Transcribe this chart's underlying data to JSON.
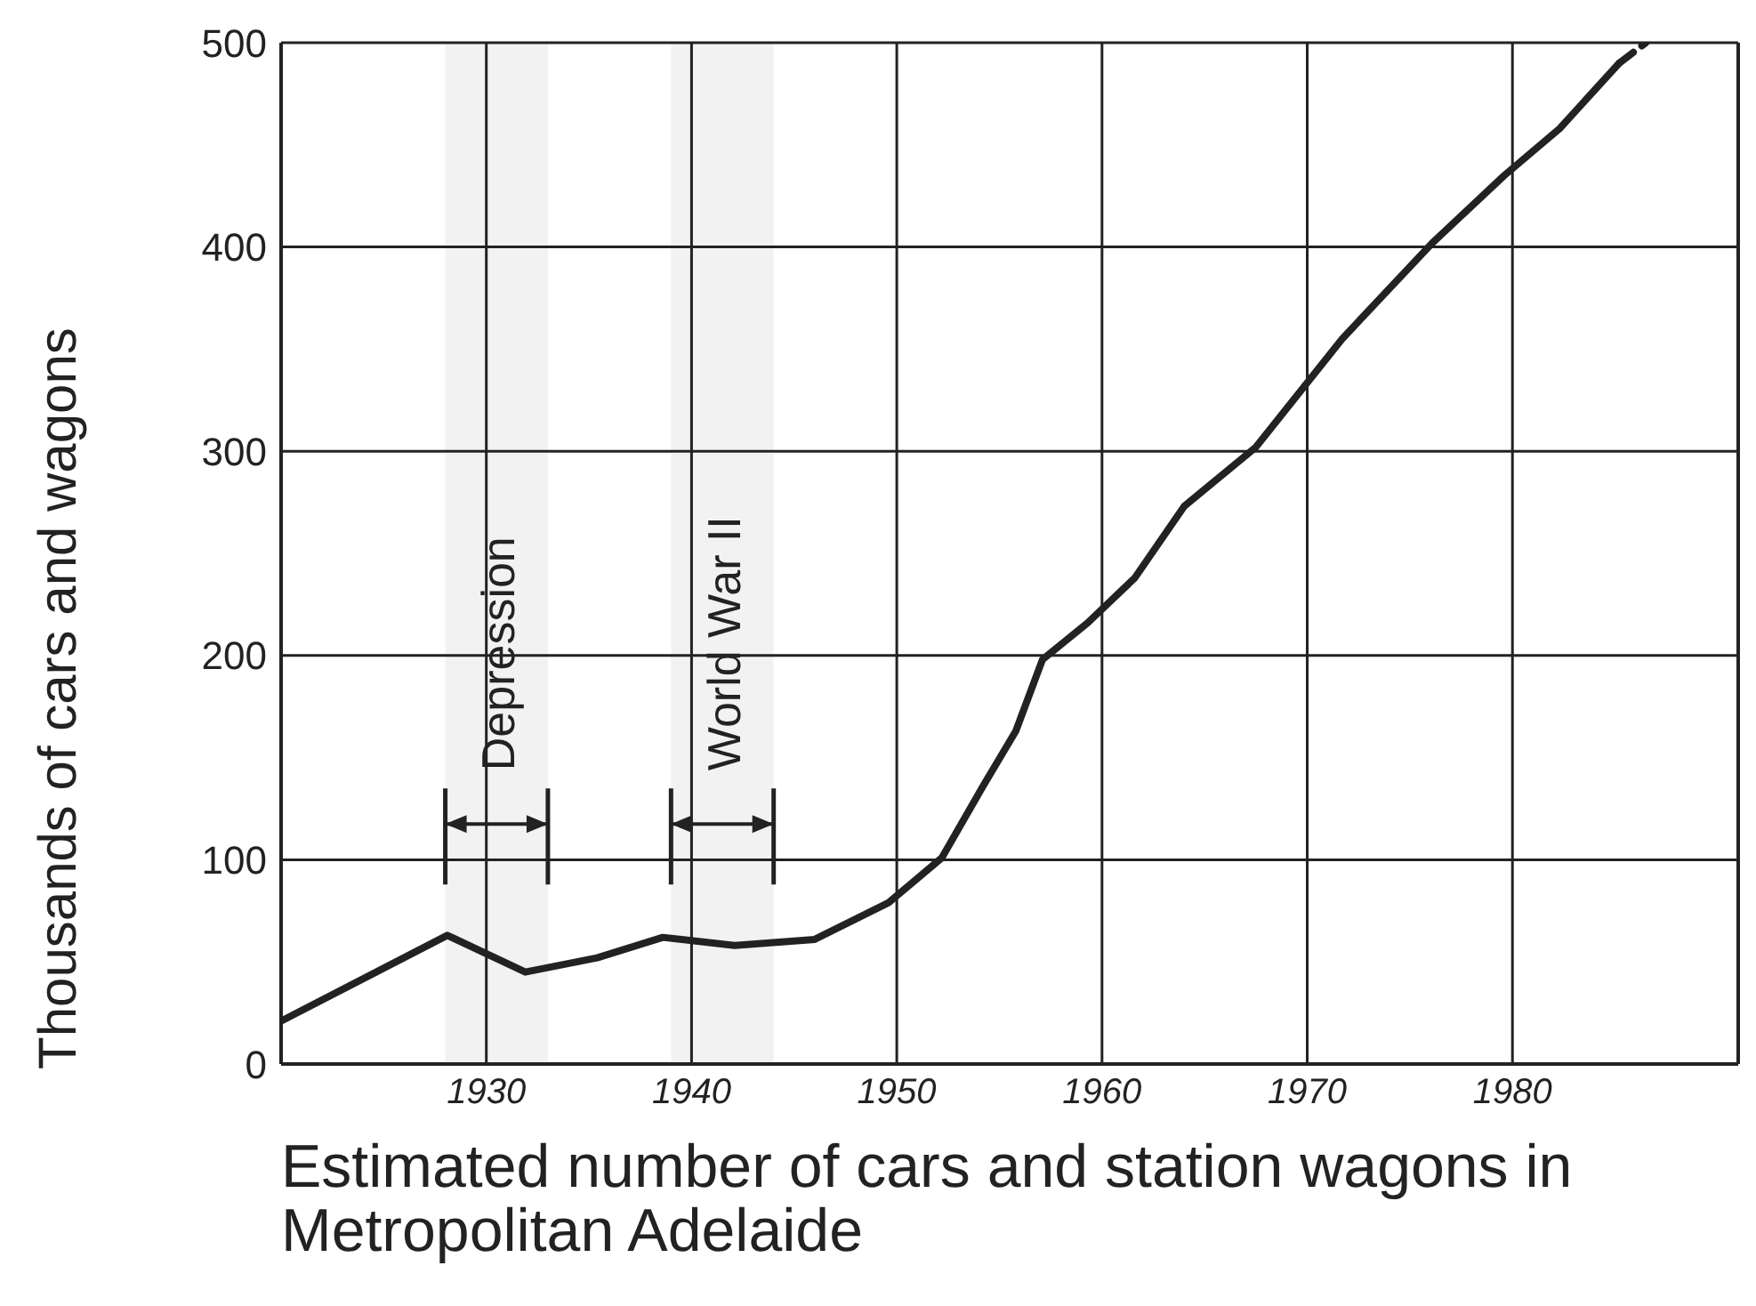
{
  "chart_data": {
    "type": "line",
    "xlabel": "Estimated number of cars and station wagons in Metropolitan Adelaide",
    "ylabel": "Thousands of cars and wagons",
    "series": [
      {
        "color": "#222222",
        "line_style": "solid",
        "x": [
          1920,
          1928.1,
          1931.9,
          1935.4,
          1938.6,
          1942.1,
          1946,
          1949.6,
          1952.2,
          1954.2,
          1955.8,
          1957.1,
          1959.3,
          1961.6,
          1964,
          1967.5,
          1971.7,
          1976.1,
          1979.6,
          1982.3,
          1985.2
        ],
        "values": [
          21,
          63,
          45,
          52,
          62,
          58,
          61,
          79,
          101,
          136,
          163,
          198,
          216,
          238,
          273,
          302,
          355,
          402,
          435,
          458,
          490
        ]
      },
      {
        "color": "#222222",
        "line_style": "dashed",
        "x": [
          1985.2,
          1986.5
        ],
        "values": [
          490,
          500
        ]
      }
    ],
    "xlim": [
      1920,
      1991
    ],
    "xticks": [
      1930,
      1940,
      1950,
      1960,
      1970,
      1980
    ],
    "ylim": [
      0,
      500
    ],
    "yticks": [
      0,
      100,
      200,
      300,
      400,
      500
    ],
    "grid": true,
    "legend": false,
    "marker": "none",
    "bands": [
      {
        "axis": "x",
        "from": 1928,
        "to": 1933,
        "label": "Depression",
        "color": "#222222"
      },
      {
        "axis": "x",
        "from": 1939,
        "to": 1944,
        "label": "World War II",
        "color": "#222222"
      }
    ]
  }
}
